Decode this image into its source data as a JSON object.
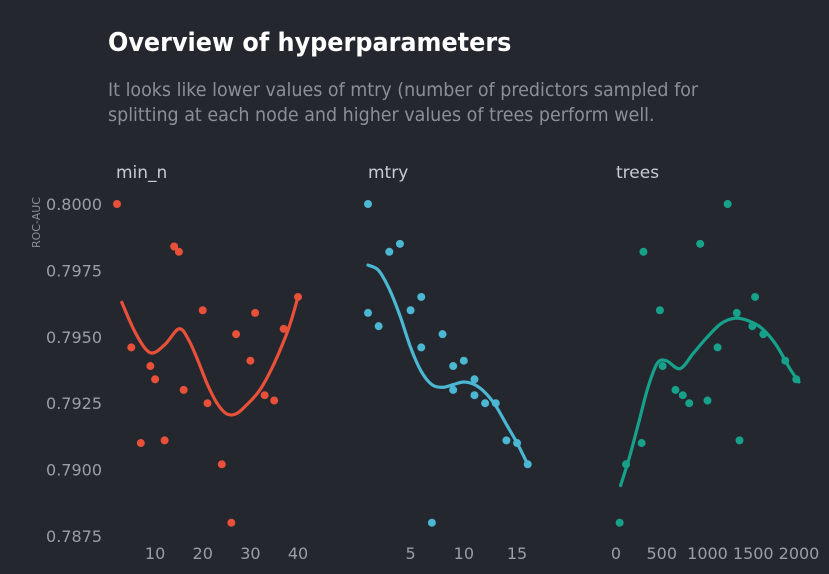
{
  "title": "Overview of hyperparameters",
  "subtitle": "It looks like lower values of mtry (number of predictors sampled for splitting at each node and higher values of trees perform well.",
  "chart_data": {
    "type": "scatter",
    "ylabel": "ROC-AUC",
    "ylim": [
      0.7875,
      0.8
    ],
    "yticks": [
      "0.8000",
      "0.7975",
      "0.7950",
      "0.7925",
      "0.7900",
      "0.7875"
    ],
    "ytick_values": [
      0.8,
      0.7975,
      0.795,
      0.7925,
      0.79,
      0.7875
    ],
    "grid": false,
    "legend": "none",
    "panels": [
      {
        "name": "min_n",
        "color": "#e8503a",
        "xlim": [
          2,
          40
        ],
        "xticks": [
          10,
          20,
          30,
          40
        ],
        "points": [
          [
            2,
            0.8
          ],
          [
            5,
            0.7946
          ],
          [
            7,
            0.791
          ],
          [
            9,
            0.7939
          ],
          [
            10,
            0.7934
          ],
          [
            12,
            0.7911
          ],
          [
            14,
            0.7984
          ],
          [
            15,
            0.7982
          ],
          [
            16,
            0.793
          ],
          [
            21,
            0.7925
          ],
          [
            20,
            0.796
          ],
          [
            24,
            0.7902
          ],
          [
            26,
            0.788
          ],
          [
            27,
            0.7951
          ],
          [
            30,
            0.7941
          ],
          [
            31,
            0.7959
          ],
          [
            33,
            0.7928
          ],
          [
            35,
            0.7926
          ],
          [
            37,
            0.7953
          ],
          [
            40,
            0.7965
          ]
        ],
        "smooth": [
          [
            3,
            0.7963
          ],
          [
            6,
            0.7951
          ],
          [
            9,
            0.7944
          ],
          [
            12,
            0.7947
          ],
          [
            15,
            0.7953
          ],
          [
            17,
            0.7949
          ],
          [
            19,
            0.7941
          ],
          [
            21,
            0.7932
          ],
          [
            23,
            0.7925
          ],
          [
            25,
            0.7921
          ],
          [
            27,
            0.7921
          ],
          [
            29,
            0.7924
          ],
          [
            32,
            0.793
          ],
          [
            35,
            0.794
          ],
          [
            38,
            0.7953
          ],
          [
            40,
            0.7965
          ]
        ]
      },
      {
        "name": "mtry",
        "color": "#4bb7d2",
        "xlim": [
          1,
          18
        ],
        "xticks": [
          5,
          10,
          15
        ],
        "points": [
          [
            1,
            0.8
          ],
          [
            1,
            0.7959
          ],
          [
            2,
            0.7954
          ],
          [
            3,
            0.7982
          ],
          [
            4,
            0.7985
          ],
          [
            5,
            0.796
          ],
          [
            6,
            0.7965
          ],
          [
            6,
            0.7946
          ],
          [
            7,
            0.788
          ],
          [
            8,
            0.7951
          ],
          [
            9,
            0.7939
          ],
          [
            9,
            0.793
          ],
          [
            10,
            0.7941
          ],
          [
            11,
            0.7934
          ],
          [
            11,
            0.7928
          ],
          [
            12,
            0.7925
          ],
          [
            13,
            0.7925
          ],
          [
            14,
            0.7911
          ],
          [
            15,
            0.791
          ],
          [
            16,
            0.7902
          ]
        ],
        "smooth": [
          [
            1,
            0.7977
          ],
          [
            2,
            0.7975
          ],
          [
            3,
            0.7968
          ],
          [
            4,
            0.7958
          ],
          [
            5,
            0.7946
          ],
          [
            6,
            0.7937
          ],
          [
            7,
            0.7932
          ],
          [
            8,
            0.7931
          ],
          [
            9,
            0.7932
          ],
          [
            10,
            0.7933
          ],
          [
            11,
            0.7932
          ],
          [
            12,
            0.7929
          ],
          [
            13,
            0.7924
          ],
          [
            14,
            0.7917
          ],
          [
            15,
            0.791
          ],
          [
            16,
            0.7902
          ]
        ]
      },
      {
        "name": "trees",
        "color": "#17a18a",
        "xlim": [
          0,
          2000
        ],
        "xticks": [
          0,
          500,
          1000,
          1500,
          2000
        ],
        "points": [
          [
            40,
            0.788
          ],
          [
            110,
            0.7902
          ],
          [
            280,
            0.791
          ],
          [
            300,
            0.7982
          ],
          [
            480,
            0.796
          ],
          [
            510,
            0.7939
          ],
          [
            650,
            0.793
          ],
          [
            730,
            0.7928
          ],
          [
            800,
            0.7925
          ],
          [
            920,
            0.7985
          ],
          [
            1000,
            0.7926
          ],
          [
            1110,
            0.7946
          ],
          [
            1220,
            0.8
          ],
          [
            1320,
            0.7959
          ],
          [
            1350,
            0.7911
          ],
          [
            1490,
            0.7954
          ],
          [
            1520,
            0.7965
          ],
          [
            1610,
            0.7951
          ],
          [
            1850,
            0.7941
          ],
          [
            1970,
            0.7934
          ]
        ],
        "smooth": [
          [
            50,
            0.7894
          ],
          [
            150,
            0.7905
          ],
          [
            250,
            0.7918
          ],
          [
            350,
            0.7931
          ],
          [
            450,
            0.794
          ],
          [
            550,
            0.7941
          ],
          [
            700,
            0.7938
          ],
          [
            850,
            0.7944
          ],
          [
            1000,
            0.795
          ],
          [
            1150,
            0.7955
          ],
          [
            1300,
            0.7957
          ],
          [
            1450,
            0.7956
          ],
          [
            1600,
            0.7953
          ],
          [
            1750,
            0.7947
          ],
          [
            1900,
            0.7938
          ],
          [
            2000,
            0.7933
          ]
        ]
      }
    ]
  }
}
